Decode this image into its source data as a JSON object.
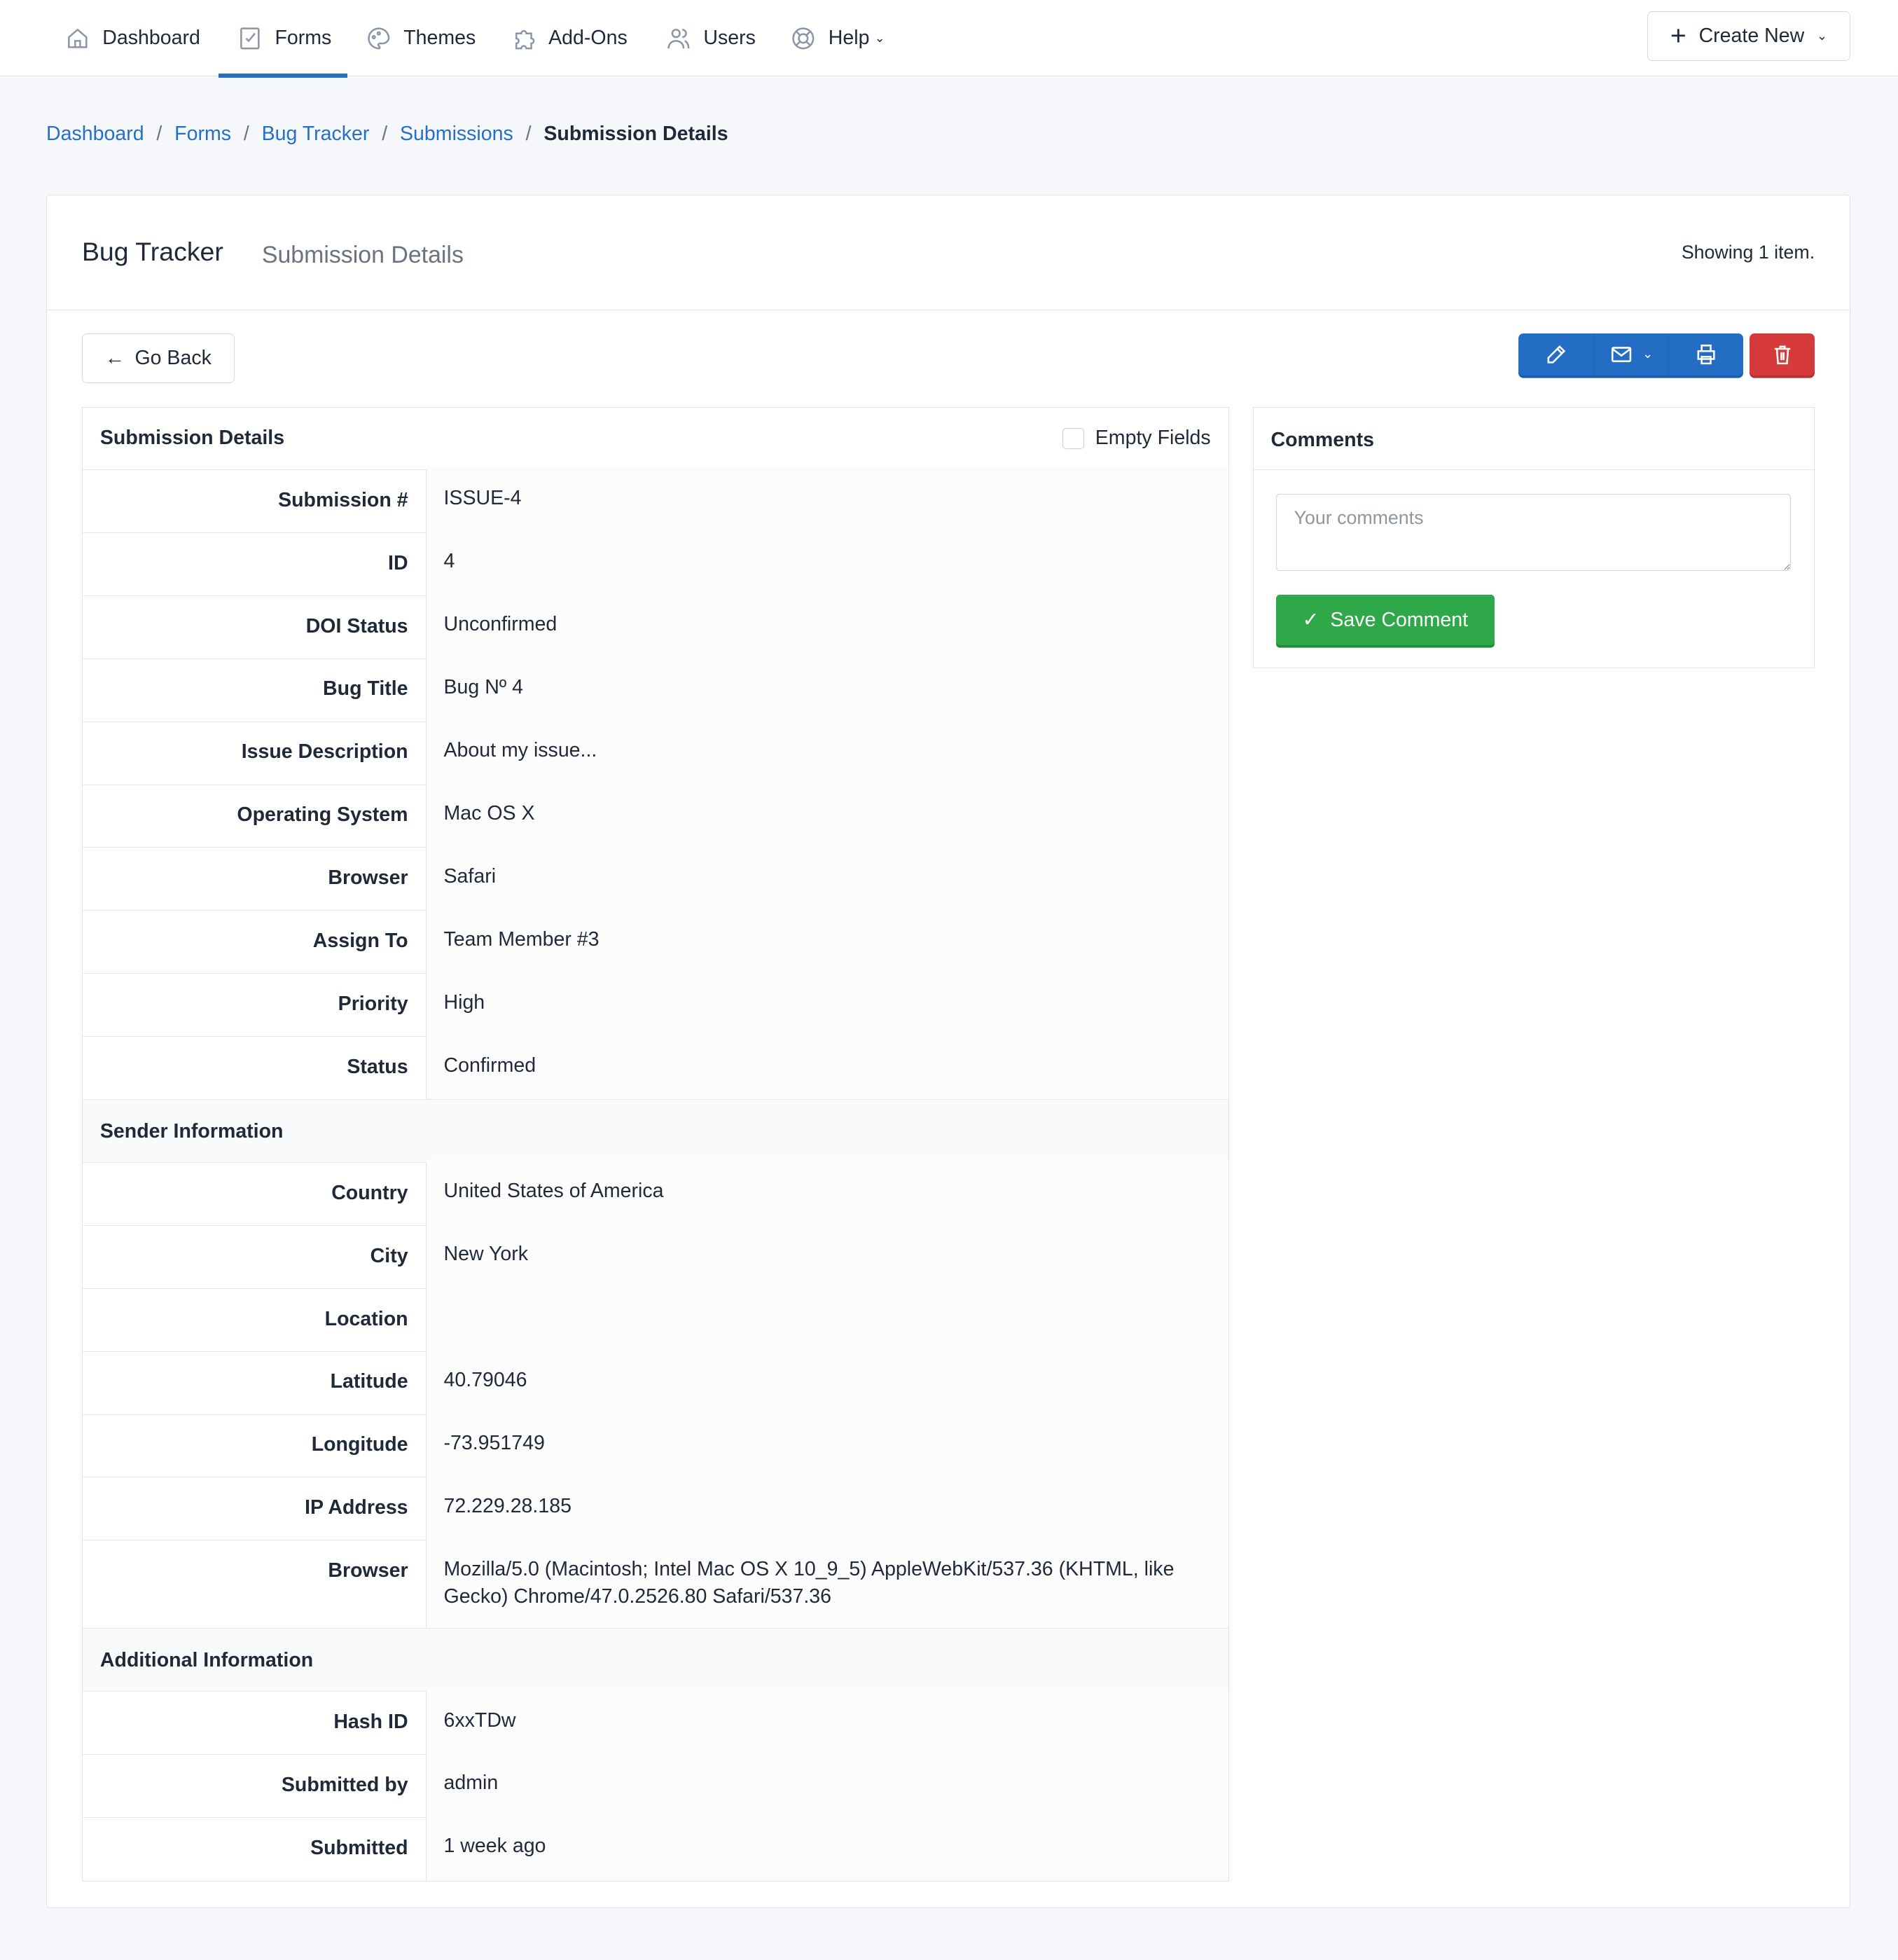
{
  "nav": {
    "items": [
      {
        "label": "Dashboard",
        "icon": "home-icon"
      },
      {
        "label": "Forms",
        "icon": "forms-icon",
        "active": true
      },
      {
        "label": "Themes",
        "icon": "palette-icon"
      },
      {
        "label": "Add-Ons",
        "icon": "puzzle-icon"
      },
      {
        "label": "Users",
        "icon": "users-icon"
      },
      {
        "label": "Help",
        "icon": "lifebuoy-icon"
      }
    ],
    "create_new": "Create New"
  },
  "breadcrumb": [
    "Dashboard",
    "Forms",
    "Bug Tracker",
    "Submissions",
    "Submission Details"
  ],
  "card": {
    "title": "Bug Tracker",
    "subtitle": "Submission Details",
    "showing": "Showing 1 item.",
    "go_back": "Go Back"
  },
  "colors": {
    "primary": "#2470c6",
    "danger": "#d63a3a",
    "success": "#2fa84a"
  },
  "details": {
    "title": "Submission Details",
    "empty_fields": "Empty Fields",
    "rows": [
      {
        "label": "Submission #",
        "value": "ISSUE-4"
      },
      {
        "label": "ID",
        "value": "4"
      },
      {
        "label": "DOI Status",
        "value": "Unconfirmed"
      },
      {
        "label": "Bug Title",
        "value": "Bug Nº 4"
      },
      {
        "label": "Issue Description",
        "value": "About my issue..."
      },
      {
        "label": "Operating System",
        "value": "Mac OS X"
      },
      {
        "label": "Browser",
        "value": "Safari"
      },
      {
        "label": "Assign To",
        "value": "Team Member #3"
      },
      {
        "label": "Priority",
        "value": "High"
      },
      {
        "label": "Status",
        "value": "Confirmed"
      },
      {
        "section": "Sender Information"
      },
      {
        "label": "Country",
        "value": "United States of America"
      },
      {
        "label": "City",
        "value": "New York"
      },
      {
        "label": "Location",
        "value": ""
      },
      {
        "label": "Latitude",
        "value": "40.79046"
      },
      {
        "label": "Longitude",
        "value": "-73.951749"
      },
      {
        "label": "IP Address",
        "value": "72.229.28.185"
      },
      {
        "label": "Browser",
        "value": "Mozilla/5.0 (Macintosh; Intel Mac OS X 10_9_5) AppleWebKit/537.36 (KHTML, like Gecko) Chrome/47.0.2526.80 Safari/537.36"
      },
      {
        "section": "Additional Information"
      },
      {
        "label": "Hash ID",
        "value": "6xxTDw"
      },
      {
        "label": "Submitted by",
        "value": "admin"
      },
      {
        "label": "Submitted",
        "value": "1 week ago"
      }
    ]
  },
  "comments": {
    "title": "Comments",
    "placeholder": "Your comments",
    "save": "Save Comment"
  }
}
